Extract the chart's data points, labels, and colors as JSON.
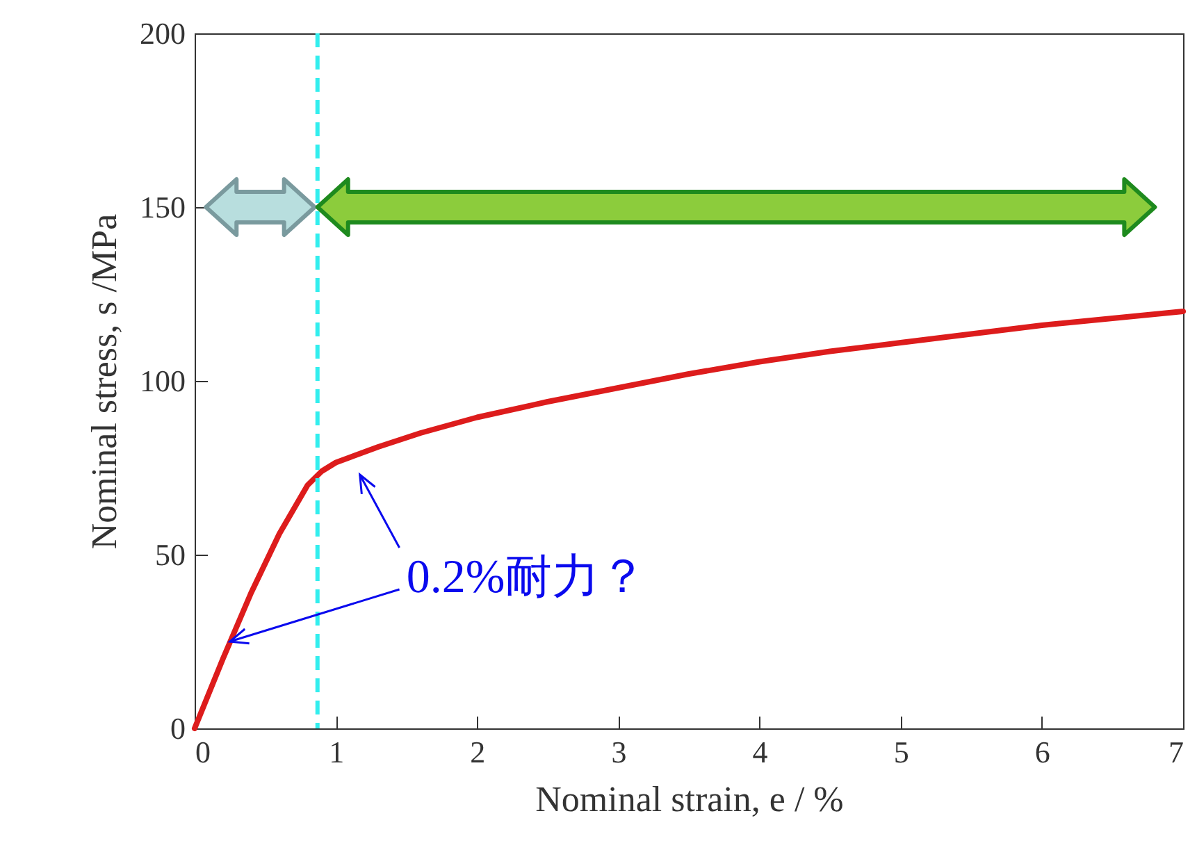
{
  "chart_data": {
    "type": "line",
    "xlabel": "Nominal strain, e / %",
    "ylabel": "Nominal stress, s /MPa",
    "x": [
      0,
      0.2,
      0.4,
      0.6,
      0.8,
      0.9,
      1.0,
      1.1,
      1.3,
      1.6,
      2.0,
      2.5,
      3.0,
      3.5,
      4.0,
      4.5,
      5.0,
      5.5,
      6.0,
      6.5,
      7.0
    ],
    "series": [
      {
        "color": "#dd1c1c",
        "values": [
          0,
          20,
          39,
          56,
          70,
          74,
          76.5,
          78,
          81,
          85,
          89.5,
          94,
          98,
          102,
          105.5,
          108.5,
          111,
          113.5,
          116,
          118,
          120
        ]
      }
    ],
    "xlim": [
      0,
      7
    ],
    "xticks": [
      0,
      1,
      2,
      3,
      4,
      5,
      6,
      7
    ],
    "ylim": [
      0,
      200
    ],
    "yticks": [
      0,
      50,
      100,
      150,
      200
    ],
    "ref_lines": [
      {
        "axis": "x",
        "value": 0.87,
        "color": "#33eeee",
        "line_style": "dashed"
      }
    ],
    "annotations": [
      {
        "text": "0.2%耐力？",
        "x": 0.25,
        "y": 25
      }
    ],
    "marker": "none",
    "line_style": "solid",
    "grid": false
  }
}
